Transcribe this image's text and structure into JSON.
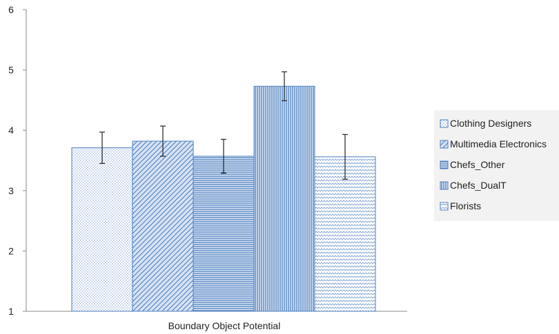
{
  "chart_data": {
    "type": "bar",
    "categories": [
      "Boundary Object Potential"
    ],
    "series": [
      {
        "name": "Clothing Designers",
        "values": [
          3.71
        ],
        "error": [
          0.26
        ],
        "pattern": "dots"
      },
      {
        "name": "Multimedia Electronics",
        "values": [
          3.82
        ],
        "error": [
          0.25
        ],
        "pattern": "diagonal"
      },
      {
        "name": "Chefs_Other",
        "values": [
          3.57
        ],
        "error": [
          0.28
        ],
        "pattern": "horizontal"
      },
      {
        "name": "Chefs_DualT",
        "values": [
          4.73
        ],
        "error": [
          0.24
        ],
        "pattern": "vertical"
      },
      {
        "name": "Florists",
        "values": [
          3.56
        ],
        "error": [
          0.37
        ],
        "pattern": "wave"
      }
    ],
    "ylim": [
      1,
      6
    ],
    "yticks": [
      1,
      2,
      3,
      4,
      5,
      6
    ],
    "grid": false,
    "legend": "right",
    "colors": {
      "fill": "#c9d7ee",
      "stroke": "#4f7fc0",
      "pattern": "#4f7fc0",
      "legend_bg": "#f2f2f2"
    }
  }
}
